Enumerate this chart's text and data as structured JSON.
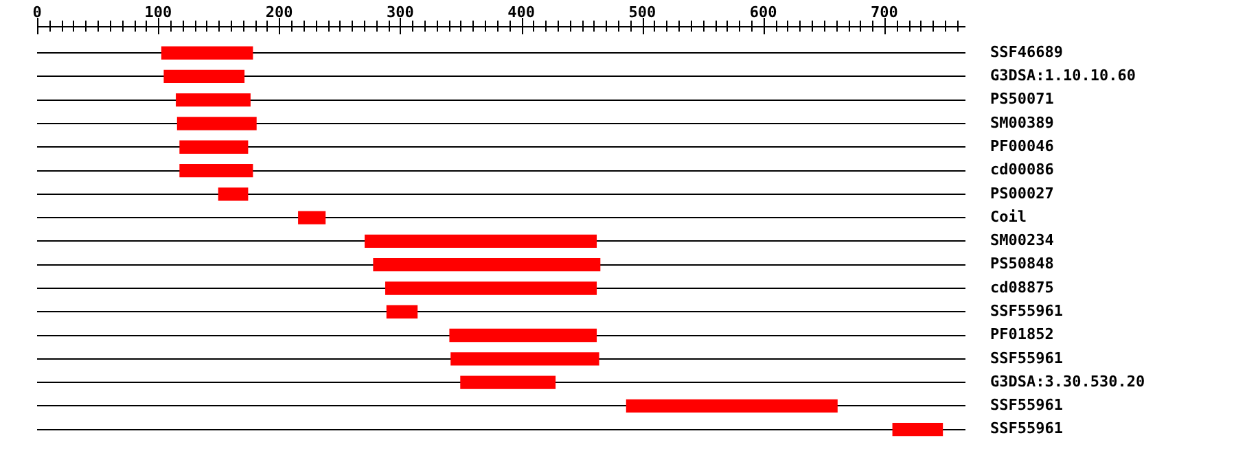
{
  "chart_data": {
    "type": "bar",
    "orientation": "horizontal",
    "categories": [
      "SSF46689",
      "G3DSA:1.10.10.60",
      "PS50071",
      "SM00389",
      "PF00046",
      "cd00086",
      "PS00027",
      "Coil",
      "SM00234",
      "PS50848",
      "cd08875",
      "SSF55961",
      "PF01852",
      "SSF55961",
      "G3DSA:3.30.530.20",
      "SSF55961",
      "SSF55961"
    ],
    "base": [
      103,
      105,
      115,
      116,
      118,
      118,
      150,
      216,
      271,
      278,
      288,
      289,
      341,
      342,
      350,
      487,
      707
    ],
    "values": [
      75,
      66,
      61,
      65,
      56,
      60,
      24,
      22,
      191,
      187,
      174,
      25,
      121,
      122,
      78,
      174,
      41
    ],
    "color": "#ff0000",
    "xlim": [
      0,
      767
    ],
    "xticks": [
      0,
      {
        "value": 10,
        "label": null
      },
      {
        "value": 20,
        "label": null
      },
      {
        "value": 30,
        "label": null
      },
      {
        "value": 40,
        "label": null
      },
      {
        "value": 50,
        "label": null
      },
      {
        "value": 60,
        "label": null
      },
      {
        "value": 70,
        "label": null
      },
      {
        "value": 80,
        "label": null
      },
      {
        "value": 90,
        "label": null
      },
      100,
      {
        "value": 110,
        "label": null
      },
      {
        "value": 120,
        "label": null
      },
      {
        "value": 130,
        "label": null
      },
      {
        "value": 140,
        "label": null
      },
      {
        "value": 150,
        "label": null
      },
      {
        "value": 160,
        "label": null
      },
      {
        "value": 170,
        "label": null
      },
      {
        "value": 180,
        "label": null
      },
      {
        "value": 190,
        "label": null
      },
      200,
      {
        "value": 210,
        "label": null
      },
      {
        "value": 220,
        "label": null
      },
      {
        "value": 230,
        "label": null
      },
      {
        "value": 240,
        "label": null
      },
      {
        "value": 250,
        "label": null
      },
      {
        "value": 260,
        "label": null
      },
      {
        "value": 270,
        "label": null
      },
      {
        "value": 280,
        "label": null
      },
      {
        "value": 290,
        "label": null
      },
      300,
      {
        "value": 310,
        "label": null
      },
      {
        "value": 320,
        "label": null
      },
      {
        "value": 330,
        "label": null
      },
      {
        "value": 340,
        "label": null
      },
      {
        "value": 350,
        "label": null
      },
      {
        "value": 360,
        "label": null
      },
      {
        "value": 370,
        "label": null
      },
      {
        "value": 380,
        "label": null
      },
      {
        "value": 390,
        "label": null
      },
      400,
      {
        "value": 410,
        "label": null
      },
      {
        "value": 420,
        "label": null
      },
      {
        "value": 430,
        "label": null
      },
      {
        "value": 440,
        "label": null
      },
      {
        "value": 450,
        "label": null
      },
      {
        "value": 460,
        "label": null
      },
      {
        "value": 470,
        "label": null
      },
      {
        "value": 480,
        "label": null
      },
      {
        "value": 490,
        "label": null
      },
      500,
      {
        "value": 510,
        "label": null
      },
      {
        "value": 520,
        "label": null
      },
      {
        "value": 530,
        "label": null
      },
      {
        "value": 540,
        "label": null
      },
      {
        "value": 550,
        "label": null
      },
      {
        "value": 560,
        "label": null
      },
      {
        "value": 570,
        "label": null
      },
      {
        "value": 580,
        "label": null
      },
      {
        "value": 590,
        "label": null
      },
      600,
      {
        "value": 610,
        "label": null
      },
      {
        "value": 620,
        "label": null
      },
      {
        "value": 630,
        "label": null
      },
      {
        "value": 640,
        "label": null
      },
      {
        "value": 650,
        "label": null
      },
      {
        "value": 660,
        "label": null
      },
      {
        "value": 670,
        "label": null
      },
      {
        "value": 680,
        "label": null
      },
      {
        "value": 690,
        "label": null
      },
      700,
      {
        "value": 710,
        "label": null
      },
      {
        "value": 720,
        "label": null
      },
      {
        "value": 730,
        "label": null
      },
      {
        "value": 740,
        "label": null
      },
      {
        "value": 750,
        "label": null
      },
      {
        "value": 760,
        "label": null
      }
    ],
    "grid": "y"
  }
}
